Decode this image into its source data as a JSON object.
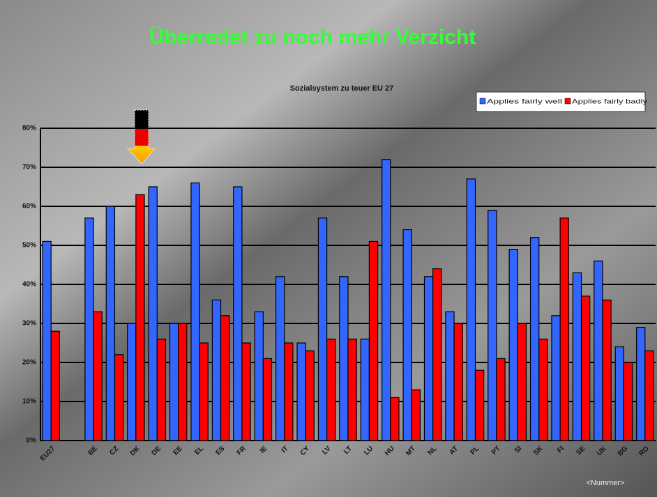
{
  "chart_data": {
    "type": "bar",
    "title": "Überredet zu noch mehr Verzicht",
    "subtitle": "Sozialsystem zu teuer EU 27",
    "footer": "<Nummer>",
    "categories": [
      "EU27",
      null,
      "BE",
      "CZ",
      "DK",
      "DE",
      "EE",
      "EL",
      "ES",
      "FR",
      "IE",
      "IT",
      "CY",
      "LV",
      "LT",
      "LU",
      "HU",
      "MT",
      "NL",
      "AT",
      "PL",
      "PT",
      "SI",
      "SK",
      "FI",
      "SE",
      "UK",
      "BG",
      "RO"
    ],
    "series": [
      {
        "name": "Applies fairly well",
        "color": "#3366ff",
        "values": [
          51,
          null,
          57,
          60,
          30,
          65,
          30,
          66,
          36,
          65,
          33,
          42,
          25,
          57,
          42,
          26,
          72,
          54,
          42,
          33,
          67,
          59,
          49,
          52,
          32,
          43,
          46,
          24,
          29
        ]
      },
      {
        "name": "Applies fairly badly",
        "color": "#ff0000",
        "values": [
          28,
          null,
          33,
          22,
          63,
          26,
          30,
          25,
          32,
          25,
          21,
          25,
          23,
          26,
          26,
          51,
          11,
          13,
          44,
          30,
          18,
          21,
          30,
          26,
          57,
          37,
          36,
          20,
          23
        ]
      }
    ],
    "ylim": [
      0,
      80
    ],
    "yticks": [
      {
        "value": 0,
        "label": "0%"
      },
      {
        "value": 10,
        "label": "10%"
      },
      {
        "value": 20,
        "label": "20%"
      },
      {
        "value": 30,
        "label": "30%"
      },
      {
        "value": 40,
        "label": "40%"
      },
      {
        "value": 50,
        "label": "50%"
      },
      {
        "value": 60,
        "label": "60%"
      },
      {
        "value": 70,
        "label": "70%"
      },
      {
        "value": 80,
        "label": "80%"
      }
    ],
    "grid": true,
    "legend": "top-right"
  }
}
